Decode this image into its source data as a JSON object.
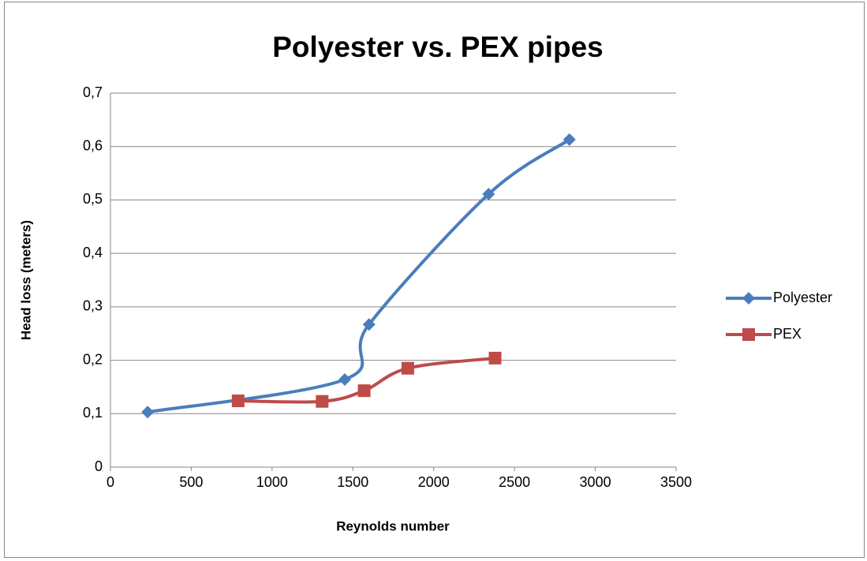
{
  "chart_data": {
    "type": "scatter",
    "title": "Polyester vs. PEX pipes",
    "x_label": "Reynolds number",
    "y_label": "Head loss (meters)",
    "xlim": [
      0,
      3500
    ],
    "xticks": [
      0,
      500,
      1000,
      1500,
      2000,
      2500,
      3000,
      3500
    ],
    "ylim": [
      0,
      0.7
    ],
    "yticks": [
      0,
      {
        "value": 0.1,
        "label": "0,1"
      },
      {
        "value": 0.2,
        "label": "0,2"
      },
      {
        "value": 0.3,
        "label": "0,3"
      },
      {
        "value": 0.4,
        "label": "0,4"
      },
      {
        "value": 0.5,
        "label": "0,5"
      },
      {
        "value": 0.6,
        "label": "0,6"
      },
      {
        "value": 0.7,
        "label": "0,7"
      }
    ],
    "grid": true,
    "smooth": true,
    "legend": "right",
    "series": [
      {
        "name": "Polyester",
        "color": "#4a7ebb",
        "marker": "diamond",
        "x": [
          230,
          1450,
          1600,
          2340,
          2840
        ],
        "values": [
          0.103,
          0.164,
          0.267,
          0.511,
          0.613
        ]
      },
      {
        "name": "PEX",
        "color": "#be4b48",
        "marker": "square",
        "x": [
          790,
          1310,
          1570,
          1840,
          2380
        ],
        "values": [
          0.124,
          0.123,
          0.143,
          0.185,
          0.204
        ]
      }
    ]
  }
}
